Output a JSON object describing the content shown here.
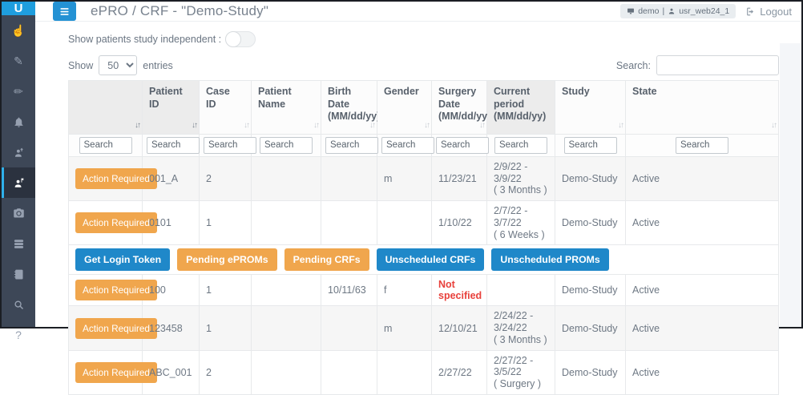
{
  "header": {
    "logo_text": "U",
    "title": "ePRO / CRF - \"Demo-Study\"",
    "session": {
      "environment": "demo",
      "separator": "|",
      "user": "usr_web24_1"
    },
    "logout_label": "Logout"
  },
  "sidebar": {
    "items": [
      {
        "icon": "hand-pointer",
        "active": false
      },
      {
        "icon": "pencil",
        "active": false
      },
      {
        "icon": "pen",
        "active": false
      },
      {
        "icon": "bell",
        "active": false
      },
      {
        "icon": "user-arrow-up",
        "active": false
      },
      {
        "icon": "user-flag",
        "active": true
      },
      {
        "icon": "camera",
        "active": false
      },
      {
        "icon": "database",
        "active": false
      },
      {
        "icon": "address-book",
        "active": false
      },
      {
        "icon": "search",
        "active": false
      },
      {
        "icon": "help",
        "active": false
      }
    ]
  },
  "controls": {
    "independent_toggle_label": "Show patients study independent :",
    "show_label": "Show",
    "page_size": "50",
    "entries_label": "entries",
    "global_search_label": "Search:"
  },
  "table": {
    "columns": [
      {
        "label": "",
        "sortable": true,
        "sorted": true,
        "shaded": true
      },
      {
        "label": "Patient ID",
        "sortable": true,
        "sorted": true,
        "shaded": true
      },
      {
        "label": "Case ID",
        "sortable": true,
        "sorted": false,
        "shaded": false
      },
      {
        "label": "Patient Name",
        "sortable": true,
        "sorted": false,
        "shaded": false
      },
      {
        "label": "Birth Date (MM/dd/yy)",
        "sortable": true,
        "sorted": false,
        "shaded": false
      },
      {
        "label": "Gender",
        "sortable": true,
        "sorted": false,
        "shaded": false
      },
      {
        "label": "Surgery Date (MM/dd/yy)",
        "sortable": true,
        "sorted": false,
        "shaded": false
      },
      {
        "label": "Current period (MM/dd/yy)",
        "sortable": false,
        "sorted": false,
        "shaded": true
      },
      {
        "label": "Study",
        "sortable": true,
        "sorted": false,
        "shaded": false
      },
      {
        "label": "State",
        "sortable": true,
        "sorted": false,
        "shaded": false
      }
    ],
    "column_filter_placeholder": "Search",
    "action_button_label": "Action Required",
    "expanded_row_index": 1,
    "expanded_row_buttons": [
      {
        "label": "Get Login Token",
        "color": "blue"
      },
      {
        "label": "Pending ePROMs",
        "color": "orange"
      },
      {
        "label": "Pending CRFs",
        "color": "orange"
      },
      {
        "label": "Unscheduled CRFs",
        "color": "blue"
      },
      {
        "label": "Unscheduled PROMs",
        "color": "blue"
      }
    ],
    "rows": [
      {
        "patient_id": "001_A",
        "case_id": "2",
        "patient_name": "",
        "birth_date": "",
        "gender": "m",
        "surgery_date": "11/23/21",
        "surgery_missing": false,
        "period_range": "2/9/22 - 3/9/22",
        "period_note": "( 3 Months )",
        "study": "Demo-Study",
        "state": "Active"
      },
      {
        "patient_id": "0101",
        "case_id": "1",
        "patient_name": "",
        "birth_date": "",
        "gender": "",
        "surgery_date": "1/10/22",
        "surgery_missing": false,
        "period_range": "2/7/22 - 3/7/22",
        "period_note": "( 6 Weeks )",
        "study": "Demo-Study",
        "state": "Active"
      },
      {
        "patient_id": "100",
        "case_id": "1",
        "patient_name": "",
        "birth_date": "10/11/63",
        "gender": "f",
        "surgery_date": "Not specified",
        "surgery_missing": true,
        "period_range": "",
        "period_note": "",
        "study": "Demo-Study",
        "state": "Active"
      },
      {
        "patient_id": "123458",
        "case_id": "1",
        "patient_name": "",
        "birth_date": "",
        "gender": "m",
        "surgery_date": "12/10/21",
        "surgery_missing": false,
        "period_range": "2/24/22 - 3/24/22",
        "period_note": "( 3 Months )",
        "study": "Demo-Study",
        "state": "Active"
      },
      {
        "patient_id": "ABC_001",
        "case_id": "2",
        "patient_name": "",
        "birth_date": "",
        "gender": "",
        "surgery_date": "2/27/22",
        "surgery_missing": false,
        "period_range": "2/27/22 - 3/5/22",
        "period_note": "( Surgery )",
        "study": "Demo-Study",
        "state": "Active"
      }
    ]
  },
  "colors": {
    "accent_blue": "#1f88c9",
    "accent_orange": "#f0a64d",
    "sidebar": "#3d4757",
    "logo_blue": "#1f9ede",
    "missing_red": "#e8413c"
  }
}
